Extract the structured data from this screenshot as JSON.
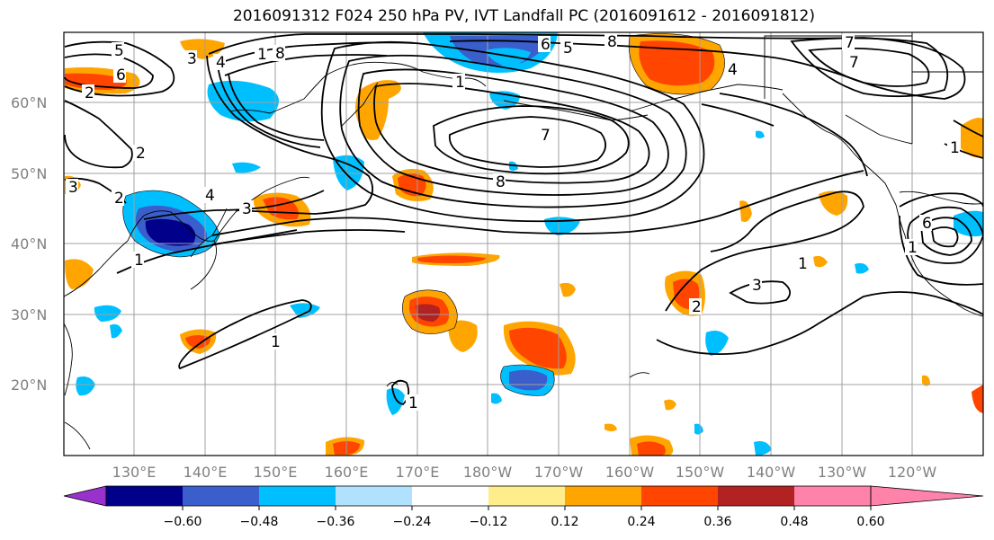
{
  "title": "2016091312 F024 250 hPa PV, IVT Landfall PC (2016091612 - 2016091812)",
  "map": {
    "lat_labels": [
      "60°N",
      "50°N",
      "40°N",
      "30°N",
      "20°N"
    ],
    "lon_labels": [
      "130°E",
      "140°E",
      "150°E",
      "160°E",
      "170°E",
      "180°W",
      "170°W",
      "160°W",
      "150°W",
      "140°W",
      "130°W",
      "120°W"
    ],
    "contour_labels": [
      "5",
      "6",
      "2",
      "3",
      "4",
      "1",
      "8",
      "7",
      "5",
      "6",
      "8",
      "4",
      "7",
      "8",
      "3",
      "1",
      "2",
      "1",
      "3",
      "1",
      "6",
      "1",
      "2",
      "1",
      "1",
      "3",
      "2",
      "4",
      "1",
      "7"
    ]
  },
  "colorbar": {
    "ticks": [
      "−0.60",
      "−0.48",
      "−0.36",
      "−0.24",
      "−0.12",
      "0.12",
      "0.24",
      "0.36",
      "0.48",
      "0.60"
    ],
    "colors": [
      "#9932cc",
      "#00008b",
      "#3a5fcd",
      "#00bfff",
      "#b0e2ff",
      "#ffffff",
      "#ffec8b",
      "#ffa500",
      "#ff4500",
      "#b22222",
      "#ff82ab"
    ]
  }
}
